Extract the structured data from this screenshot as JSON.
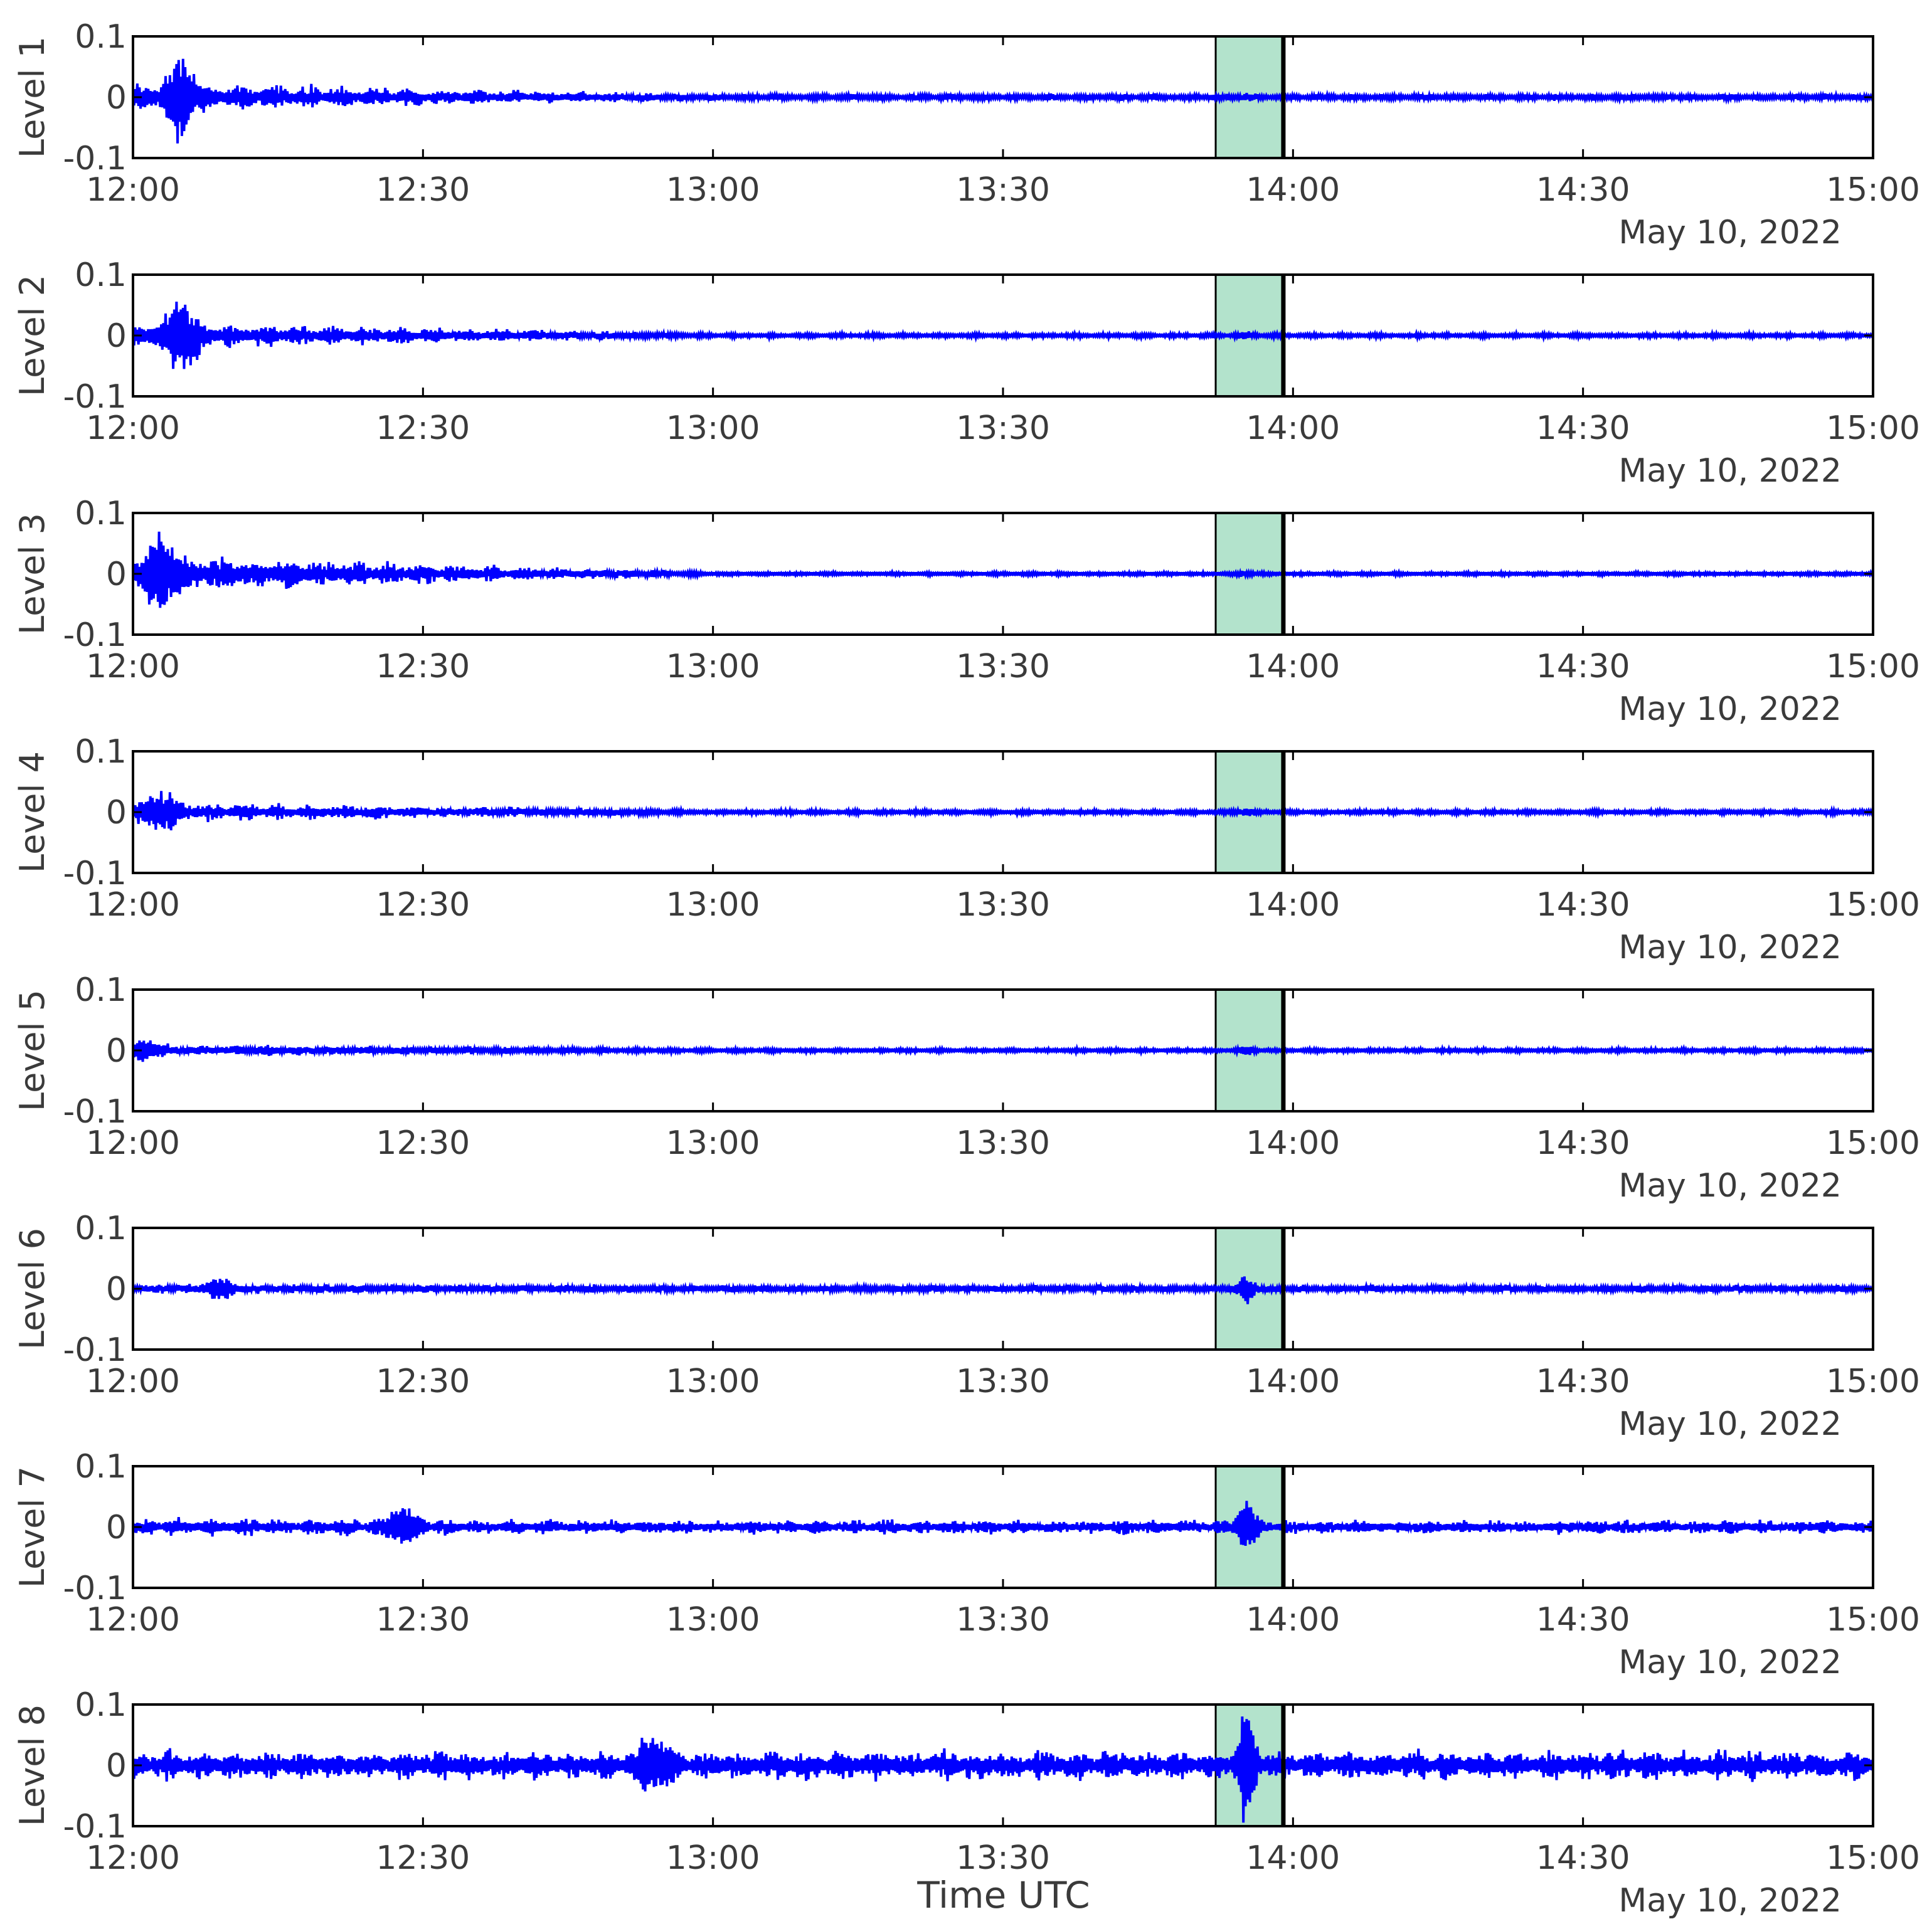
{
  "chart_data": {
    "type": "line",
    "layout": "8 stacked panels sharing x axis",
    "xlabel": "Time UTC",
    "date_label": "May 10, 2022",
    "x_range": [
      "12:00",
      "15:00"
    ],
    "x_tick_labels": [
      "12:00",
      "12:30",
      "13:00",
      "13:30",
      "14:00",
      "14:30",
      "15:00"
    ],
    "ylim": [
      -0.1,
      0.1
    ],
    "y_tick_labels": [
      "0.1",
      "0",
      "-0.1"
    ],
    "grid": false,
    "highlight_window": {
      "start": "13:52",
      "end": "13:59",
      "color": "#b3e3cc"
    },
    "event_marker": {
      "time": "13:59",
      "color": "#000000"
    },
    "series_color": "#0000ff",
    "panels": [
      {
        "label": "Level 1",
        "envelope_start": 0.03,
        "envelope_late": 0.0065,
        "burst_amp": 0.06,
        "burst_time": "12:05",
        "event_amp": 0.004
      },
      {
        "label": "Level 2",
        "envelope_start": 0.028,
        "envelope_late": 0.0045,
        "burst_amp": 0.055,
        "burst_time": "12:05",
        "event_amp": 0.004
      },
      {
        "label": "Level 3",
        "envelope_start": 0.04,
        "envelope_late": 0.0035,
        "burst_amp": 0.055,
        "burst_time": "12:03",
        "event_amp": 0.004
      },
      {
        "label": "Level 4",
        "envelope_start": 0.02,
        "envelope_late": 0.0045,
        "burst_amp": 0.03,
        "burst_time": "12:03",
        "event_amp": 0.005
      },
      {
        "label": "Level 5",
        "envelope_start": 0.012,
        "envelope_late": 0.004,
        "burst_amp": 0.015,
        "burst_time": "12:01",
        "event_amp": 0.006
      },
      {
        "label": "Level 6",
        "envelope_start": 0.01,
        "envelope_late": 0.007,
        "burst_amp": 0.015,
        "burst_time": "12:09",
        "event_amp": 0.025
      },
      {
        "label": "Level 7",
        "envelope_start": 0.018,
        "envelope_late": 0.014,
        "burst_amp": 0.03,
        "burst_time": "12:28",
        "event_amp": 0.045
      },
      {
        "label": "Level 8",
        "envelope_start": 0.03,
        "envelope_late": 0.03,
        "burst_amp": 0.04,
        "burst_time": "12:54",
        "event_amp": 0.09
      }
    ]
  }
}
